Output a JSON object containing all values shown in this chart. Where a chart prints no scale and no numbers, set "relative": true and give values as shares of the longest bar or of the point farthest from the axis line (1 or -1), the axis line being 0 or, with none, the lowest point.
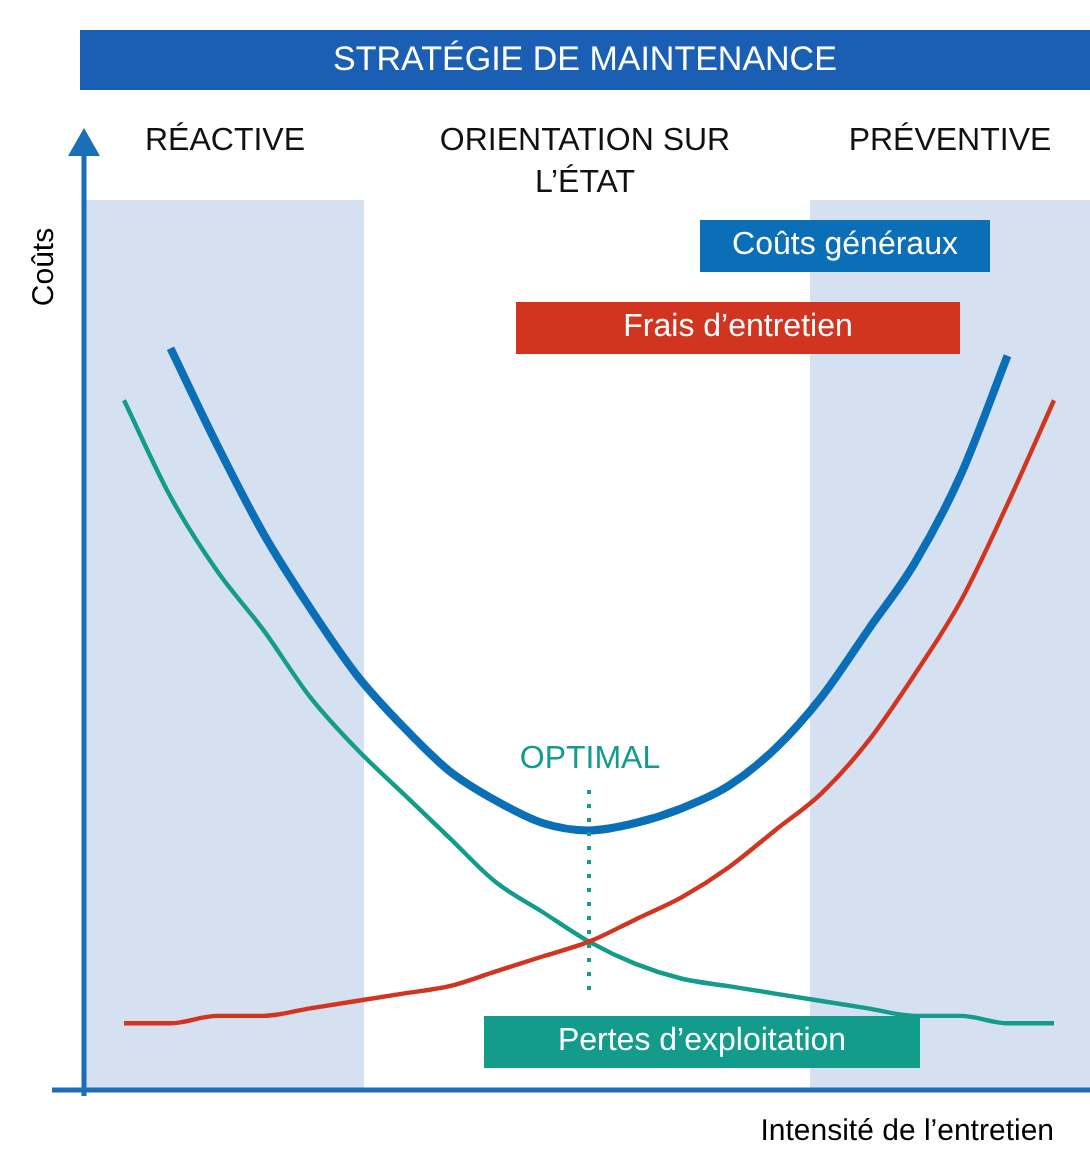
{
  "chart_data": {
    "type": "line",
    "title": "STRATÉGIE DE MAINTENANCE",
    "xlabel": "Intensité de l’entretien",
    "ylabel": "Coûts",
    "relative": true,
    "marker": "none",
    "categories": [
      null,
      null,
      null,
      null,
      null,
      null,
      null,
      null,
      null,
      null,
      null,
      null,
      null,
      null,
      null,
      null,
      null,
      null,
      null,
      null,
      null
    ],
    "series": [
      {
        "name": "Coûts généraux",
        "color": "#0a6fb7",
        "values": [
          null,
          1.0,
          0.87,
          0.75,
          0.65,
          0.56,
          0.49,
          0.43,
          0.39,
          0.36,
          0.35,
          0.36,
          0.38,
          0.41,
          0.46,
          0.53,
          0.62,
          0.71,
          0.83,
          0.99,
          null
        ]
      },
      {
        "name": "Frais d’entretien",
        "color": "#d2351f",
        "values": [
          0.09,
          0.09,
          0.1,
          0.1,
          0.11,
          0.12,
          0.13,
          0.14,
          0.16,
          0.18,
          0.2,
          0.23,
          0.26,
          0.3,
          0.35,
          0.4,
          0.47,
          0.56,
          0.66,
          0.79,
          0.93
        ]
      },
      {
        "name": "Pertes d’exploitation",
        "color": "#139c8c",
        "values": [
          0.93,
          0.8,
          0.7,
          0.62,
          0.53,
          0.46,
          0.4,
          0.34,
          0.28,
          0.24,
          0.2,
          0.17,
          0.15,
          0.14,
          0.13,
          0.12,
          0.11,
          0.1,
          0.1,
          0.09,
          0.09
        ]
      }
    ],
    "annotations": [
      "RÉACTIVE",
      "ORIENTATION SUR L’ÉTAT",
      "PRÉVENTIVE",
      "OPTIMAL"
    ]
  }
}
